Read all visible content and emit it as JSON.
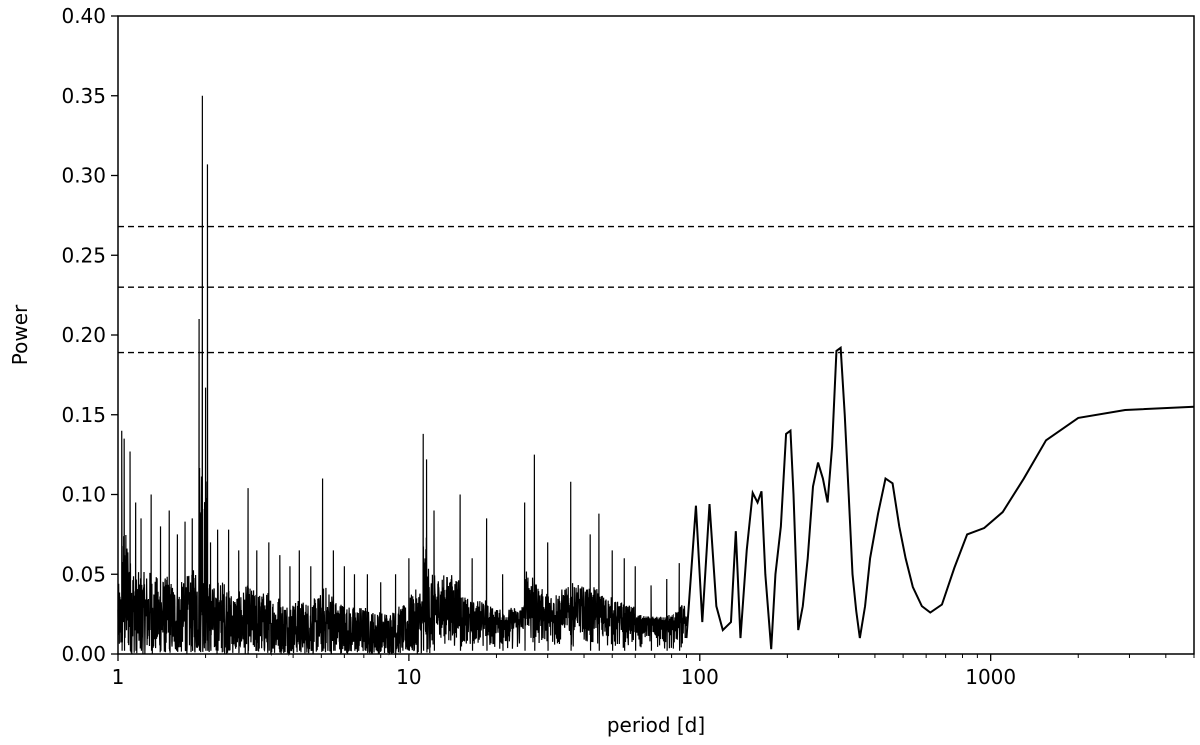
{
  "chart_data": {
    "type": "line",
    "title": "",
    "xlabel": "period [d]",
    "ylabel": "Power",
    "xscale": "log",
    "xlim": [
      1,
      5000
    ],
    "ylim": [
      0,
      0.4
    ],
    "grid": false,
    "x_ticks": [
      {
        "value": 1,
        "label": "1"
      },
      {
        "value": 10,
        "label": "10"
      },
      {
        "value": 100,
        "label": "100"
      },
      {
        "value": 1000,
        "label": "1000"
      }
    ],
    "y_ticks": [
      {
        "value": 0.0,
        "label": "0.00"
      },
      {
        "value": 0.05,
        "label": "0.05"
      },
      {
        "value": 0.1,
        "label": "0.10"
      },
      {
        "value": 0.15,
        "label": "0.15"
      },
      {
        "value": 0.2,
        "label": "0.20"
      },
      {
        "value": 0.25,
        "label": "0.25"
      },
      {
        "value": 0.3,
        "label": "0.30"
      },
      {
        "value": 0.35,
        "label": "0.35"
      },
      {
        "value": 0.4,
        "label": "0.40"
      }
    ],
    "threshold_lines": [
      0.268,
      0.23,
      0.189
    ],
    "peaks": [
      {
        "x": 1.03,
        "y": 0.14
      },
      {
        "x": 1.05,
        "y": 0.135
      },
      {
        "x": 1.1,
        "y": 0.127
      },
      {
        "x": 1.15,
        "y": 0.095
      },
      {
        "x": 1.2,
        "y": 0.085
      },
      {
        "x": 1.3,
        "y": 0.1
      },
      {
        "x": 1.4,
        "y": 0.08
      },
      {
        "x": 1.5,
        "y": 0.09
      },
      {
        "x": 1.6,
        "y": 0.075
      },
      {
        "x": 1.7,
        "y": 0.083
      },
      {
        "x": 1.8,
        "y": 0.085
      },
      {
        "x": 1.9,
        "y": 0.21
      },
      {
        "x": 1.95,
        "y": 0.35
      },
      {
        "x": 2.0,
        "y": 0.167
      },
      {
        "x": 2.03,
        "y": 0.307
      },
      {
        "x": 2.08,
        "y": 0.07
      },
      {
        "x": 2.2,
        "y": 0.078
      },
      {
        "x": 2.4,
        "y": 0.078
      },
      {
        "x": 2.6,
        "y": 0.065
      },
      {
        "x": 2.8,
        "y": 0.104
      },
      {
        "x": 3.0,
        "y": 0.065
      },
      {
        "x": 3.3,
        "y": 0.07
      },
      {
        "x": 3.6,
        "y": 0.062
      },
      {
        "x": 3.9,
        "y": 0.055
      },
      {
        "x": 4.2,
        "y": 0.065
      },
      {
        "x": 4.6,
        "y": 0.055
      },
      {
        "x": 5.05,
        "y": 0.11
      },
      {
        "x": 5.5,
        "y": 0.065
      },
      {
        "x": 6.0,
        "y": 0.055
      },
      {
        "x": 6.5,
        "y": 0.05
      },
      {
        "x": 7.2,
        "y": 0.05
      },
      {
        "x": 8.0,
        "y": 0.045
      },
      {
        "x": 9.0,
        "y": 0.05
      },
      {
        "x": 10.0,
        "y": 0.06
      },
      {
        "x": 11.2,
        "y": 0.138
      },
      {
        "x": 11.5,
        "y": 0.122
      },
      {
        "x": 12.2,
        "y": 0.09
      },
      {
        "x": 15.0,
        "y": 0.1
      },
      {
        "x": 16.5,
        "y": 0.06
      },
      {
        "x": 18.5,
        "y": 0.085
      },
      {
        "x": 21.0,
        "y": 0.05
      },
      {
        "x": 25.0,
        "y": 0.095
      },
      {
        "x": 27.0,
        "y": 0.125
      },
      {
        "x": 30.0,
        "y": 0.07
      },
      {
        "x": 36.0,
        "y": 0.108
      },
      {
        "x": 42.0,
        "y": 0.075
      },
      {
        "x": 45.0,
        "y": 0.088
      },
      {
        "x": 50.0,
        "y": 0.065
      },
      {
        "x": 55.0,
        "y": 0.06
      },
      {
        "x": 60.0,
        "y": 0.055
      },
      {
        "x": 68.0,
        "y": 0.043
      },
      {
        "x": 77.0,
        "y": 0.047
      },
      {
        "x": 85.0,
        "y": 0.057
      }
    ],
    "series": [
      {
        "x": [
          90,
          97,
          102,
          108,
          114,
          120,
          128,
          133,
          138,
          145,
          152,
          158,
          163,
          168,
          176,
          182,
          190,
          198,
          205,
          210,
          218,
          226,
          235,
          245,
          255,
          265,
          275,
          285,
          295,
          305,
          315,
          325,
          335,
          345,
          355,
          370,
          385,
          410,
          435,
          460,
          485,
          510,
          540,
          580,
          620,
          680,
          750,
          830,
          950,
          1100,
          1300,
          1550,
          2000,
          2900,
          5000
        ],
        "y": [
          0.01,
          0.093,
          0.02,
          0.094,
          0.03,
          0.015,
          0.02,
          0.077,
          0.01,
          0.065,
          0.101,
          0.095,
          0.102,
          0.05,
          0.003,
          0.05,
          0.08,
          0.138,
          0.14,
          0.1,
          0.015,
          0.03,
          0.06,
          0.105,
          0.12,
          0.11,
          0.095,
          0.13,
          0.19,
          0.192,
          0.15,
          0.1,
          0.05,
          0.027,
          0.01,
          0.03,
          0.06,
          0.088,
          0.11,
          0.107,
          0.08,
          0.06,
          0.042,
          0.03,
          0.026,
          0.031,
          0.054,
          0.075,
          0.079,
          0.089,
          0.11,
          0.134,
          0.148,
          0.153,
          0.155
        ]
      }
    ]
  }
}
